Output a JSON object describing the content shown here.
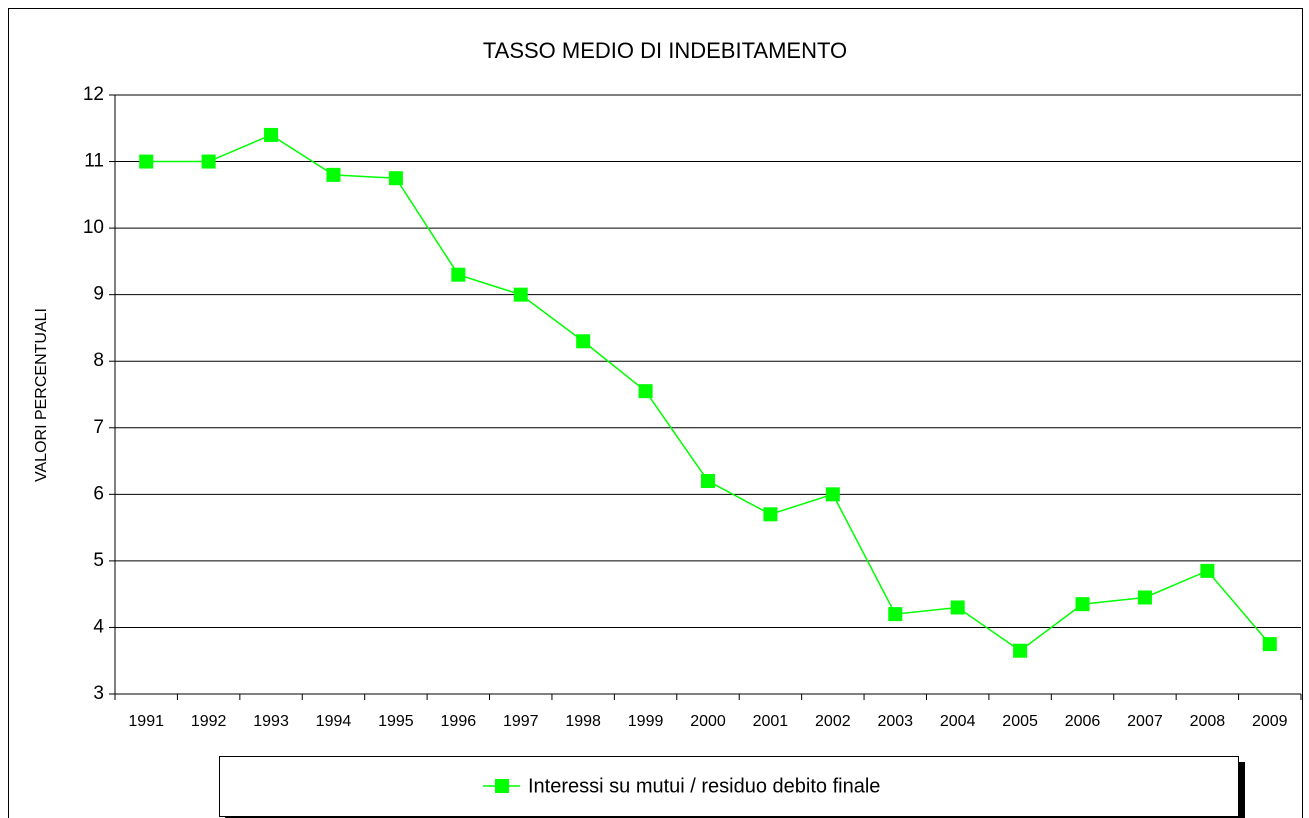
{
  "chart_data": {
    "type": "line",
    "title": "TASSO MEDIO DI INDEBITAMENTO",
    "y_label": "VALORI PERCENTUALI",
    "categories": [
      "1991",
      "1992",
      "1993",
      "1994",
      "1995",
      "1996",
      "1997",
      "1998",
      "1999",
      "2000",
      "2001",
      "2002",
      "2003",
      "2004",
      "2005",
      "2006",
      "2007",
      "2008",
      "2009"
    ],
    "series": [
      {
        "name": "Interessi su mutui / residuo debito finale",
        "color": "#00ff00",
        "values": [
          11.0,
          11.0,
          11.4,
          10.8,
          10.75,
          9.3,
          9.0,
          8.3,
          7.55,
          6.2,
          5.7,
          6.0,
          4.2,
          4.3,
          3.65,
          4.35,
          4.45,
          4.85,
          3.75
        ]
      }
    ],
    "ylim": [
      3,
      12
    ],
    "yticks": [
      3,
      4,
      5,
      6,
      7,
      8,
      9,
      10,
      11,
      12
    ],
    "grid": true,
    "legend": "bottom"
  }
}
